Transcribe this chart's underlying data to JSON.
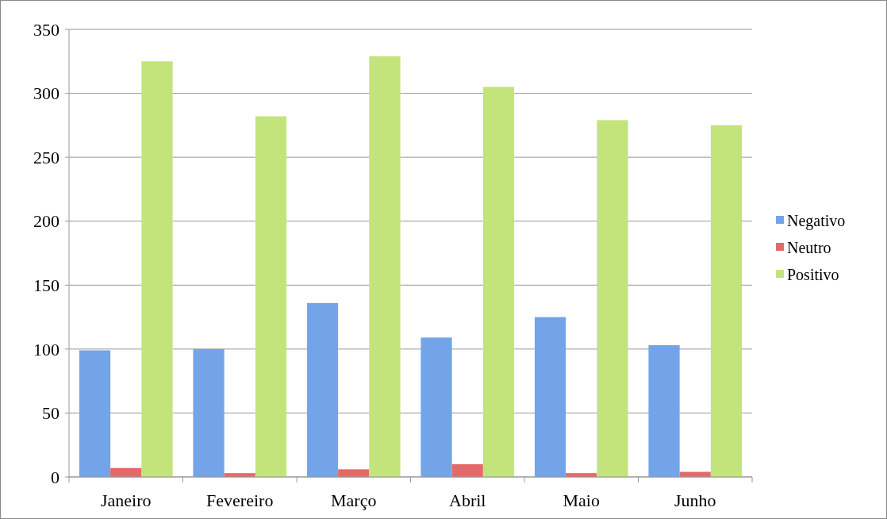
{
  "chart_data": {
    "type": "bar",
    "categories": [
      "Janeiro",
      "Fevereiro",
      "Março",
      "Abril",
      "Maio",
      "Junho"
    ],
    "series": [
      {
        "name": "Negativo",
        "color": "#73a4ea",
        "values": [
          99,
          100,
          136,
          109,
          125,
          103
        ]
      },
      {
        "name": "Neutro",
        "color": "#e46a6a",
        "values": [
          7,
          3,
          6,
          10,
          3,
          4
        ]
      },
      {
        "name": "Positivo",
        "color": "#c3e47a",
        "values": [
          325,
          282,
          329,
          305,
          279,
          275
        ]
      }
    ],
    "ylim": [
      0,
      350
    ],
    "yticks": [
      0,
      50,
      100,
      150,
      200,
      250,
      300,
      350
    ],
    "grid": "y",
    "legend": "right"
  }
}
